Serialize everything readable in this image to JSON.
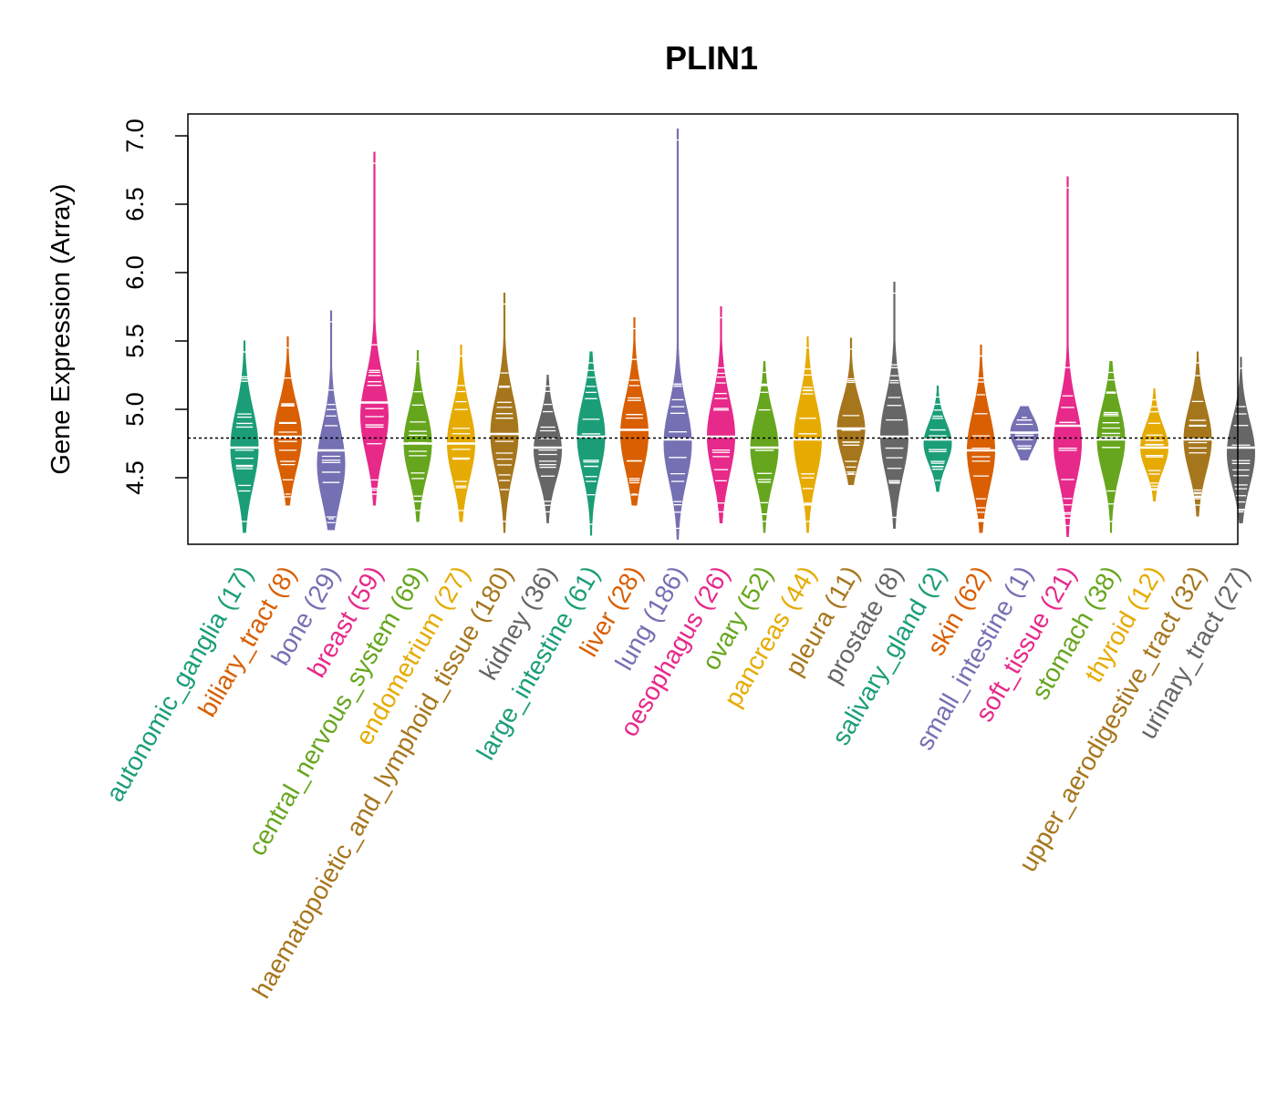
{
  "chart_data": {
    "type": "beanplot",
    "title": "PLIN1",
    "ylabel": "Gene Expression (Array)",
    "xlabel": "",
    "ylim": [
      4.1,
      7.12
    ],
    "yticks": [
      4.5,
      5.0,
      5.5,
      6.0,
      6.5,
      7.0
    ],
    "ytick_labels": [
      "4.5",
      "5.0",
      "5.5",
      "6.0",
      "6.5",
      "7.0"
    ],
    "reference_line": 4.79,
    "categories": [
      {
        "label": "autonomic_ganglia (17)",
        "color": "#1B9E77",
        "min": 4.1,
        "max": 5.5,
        "mode": 4.72,
        "median": 4.72
      },
      {
        "label": "biliary_tract (8)",
        "color": "#D95F02",
        "min": 4.3,
        "max": 5.53,
        "mode": 4.8,
        "median": 4.8
      },
      {
        "label": "bone (29)",
        "color": "#7570B3",
        "min": 4.12,
        "max": 5.72,
        "mode": 4.6,
        "median": 4.7
      },
      {
        "label": "breast (59)",
        "color": "#E7298A",
        "min": 4.3,
        "max": 6.88,
        "mode": 4.95,
        "median": 5.05
      },
      {
        "label": "central_nervous_system (69)",
        "color": "#66A61E",
        "min": 4.18,
        "max": 5.43,
        "mode": 4.75,
        "median": 4.75
      },
      {
        "label": "endometrium (27)",
        "color": "#E6AB02",
        "min": 4.18,
        "max": 5.47,
        "mode": 4.75,
        "median": 4.75
      },
      {
        "label": "haematopoietic_and_lymphoid_tissue (180)",
        "color": "#A6761D",
        "min": 4.1,
        "max": 5.85,
        "mode": 4.82,
        "median": 4.82
      },
      {
        "label": "kidney (36)",
        "color": "#666666",
        "min": 4.17,
        "max": 5.25,
        "mode": 4.7,
        "median": 4.72
      },
      {
        "label": "large_intestine (61)",
        "color": "#1B9E77",
        "min": 4.08,
        "max": 5.42,
        "mode": 4.8,
        "median": 4.8
      },
      {
        "label": "liver (28)",
        "color": "#D95F02",
        "min": 4.3,
        "max": 5.67,
        "mode": 4.82,
        "median": 4.85
      },
      {
        "label": "lung (186)",
        "color": "#7570B3",
        "min": 4.05,
        "max": 7.05,
        "mode": 4.75,
        "median": 4.78
      },
      {
        "label": "oesophagus (26)",
        "color": "#E7298A",
        "min": 4.17,
        "max": 5.75,
        "mode": 4.8,
        "median": 4.8
      },
      {
        "label": "ovary (52)",
        "color": "#66A61E",
        "min": 4.1,
        "max": 5.35,
        "mode": 4.72,
        "median": 4.72
      },
      {
        "label": "pancreas (44)",
        "color": "#E6AB02",
        "min": 4.1,
        "max": 5.53,
        "mode": 4.78,
        "median": 4.78
      },
      {
        "label": "pleura (11)",
        "color": "#A6761D",
        "min": 4.45,
        "max": 5.52,
        "mode": 4.85,
        "median": 4.86
      },
      {
        "label": "prostate (8)",
        "color": "#666666",
        "min": 4.13,
        "max": 5.93,
        "mode": 4.8,
        "median": 4.8
      },
      {
        "label": "salivary_gland (2)",
        "color": "#1B9E77",
        "min": 4.4,
        "max": 5.17,
        "mode": 4.75,
        "median": 4.78
      },
      {
        "label": "skin (62)",
        "color": "#D95F02",
        "min": 4.1,
        "max": 5.47,
        "mode": 4.7,
        "median": 4.7
      },
      {
        "label": "small_intestine (1)",
        "color": "#7570B3",
        "min": 4.63,
        "max": 5.02,
        "mode": 4.83,
        "median": 4.83
      },
      {
        "label": "soft_tissue (21)",
        "color": "#E7298A",
        "min": 4.07,
        "max": 6.7,
        "mode": 4.75,
        "median": 4.88
      },
      {
        "label": "stomach (38)",
        "color": "#66A61E",
        "min": 4.1,
        "max": 5.35,
        "mode": 4.78,
        "median": 4.78
      },
      {
        "label": "thyroid (12)",
        "color": "#E6AB02",
        "min": 4.33,
        "max": 5.15,
        "mode": 4.72,
        "median": 4.72
      },
      {
        "label": "upper_aerodigestive_tract (32)",
        "color": "#A6761D",
        "min": 4.22,
        "max": 5.42,
        "mode": 4.78,
        "median": 4.78
      },
      {
        "label": "urinary_tract (27)",
        "color": "#666666",
        "min": 4.17,
        "max": 5.38,
        "mode": 4.68,
        "median": 4.72
      }
    ]
  }
}
